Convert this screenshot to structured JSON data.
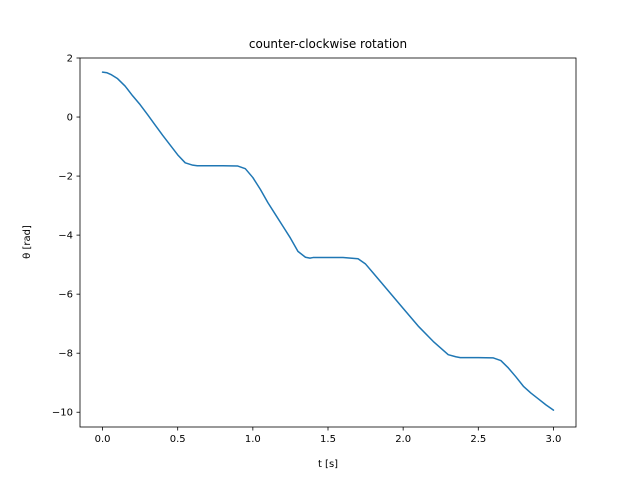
{
  "chart_data": {
    "type": "line",
    "title": "counter-clockwise rotation",
    "xlabel": "t [s]",
    "ylabel": "θ [rad]",
    "xlim": [
      -0.15,
      3.15
    ],
    "ylim": [
      -10.5,
      2.0
    ],
    "xticks": [
      0.0,
      0.5,
      1.0,
      1.5,
      2.0,
      2.5,
      3.0
    ],
    "xtick_labels": [
      "0.0",
      "0.5",
      "1.0",
      "1.5",
      "2.0",
      "2.5",
      "3.0"
    ],
    "yticks": [
      -10,
      -8,
      -6,
      -4,
      -2,
      0,
      2
    ],
    "ytick_labels": [
      "−10",
      "−8",
      "−6",
      "−4",
      "−2",
      "0",
      "2"
    ],
    "grid": false,
    "colors": {
      "line": "#1f77b4"
    },
    "series": [
      {
        "x": [
          0.0,
          0.03,
          0.06,
          0.1,
          0.15,
          0.2,
          0.25,
          0.3,
          0.35,
          0.4,
          0.45,
          0.5,
          0.55,
          0.6,
          0.63,
          0.65,
          0.7,
          0.8,
          0.9,
          0.95,
          1.0,
          1.05,
          1.1,
          1.15,
          1.2,
          1.25,
          1.3,
          1.35,
          1.38,
          1.4,
          1.45,
          1.5,
          1.6,
          1.7,
          1.75,
          1.8,
          1.85,
          1.9,
          2.0,
          2.1,
          2.2,
          2.3,
          2.35,
          2.38,
          2.4,
          2.5,
          2.6,
          2.65,
          2.7,
          2.75,
          2.8,
          2.85,
          2.9,
          2.95,
          3.0
        ],
        "y": [
          1.52,
          1.5,
          1.43,
          1.3,
          1.05,
          0.72,
          0.42,
          0.08,
          -0.27,
          -0.62,
          -0.95,
          -1.28,
          -1.55,
          -1.63,
          -1.65,
          -1.65,
          -1.65,
          -1.65,
          -1.66,
          -1.75,
          -2.05,
          -2.45,
          -2.9,
          -3.3,
          -3.7,
          -4.1,
          -4.55,
          -4.75,
          -4.78,
          -4.76,
          -4.76,
          -4.76,
          -4.76,
          -4.8,
          -4.98,
          -5.28,
          -5.58,
          -5.88,
          -6.48,
          -7.08,
          -7.6,
          -8.05,
          -8.12,
          -8.15,
          -8.15,
          -8.15,
          -8.16,
          -8.25,
          -8.5,
          -8.8,
          -9.12,
          -9.35,
          -9.55,
          -9.75,
          -9.93
        ]
      }
    ]
  }
}
